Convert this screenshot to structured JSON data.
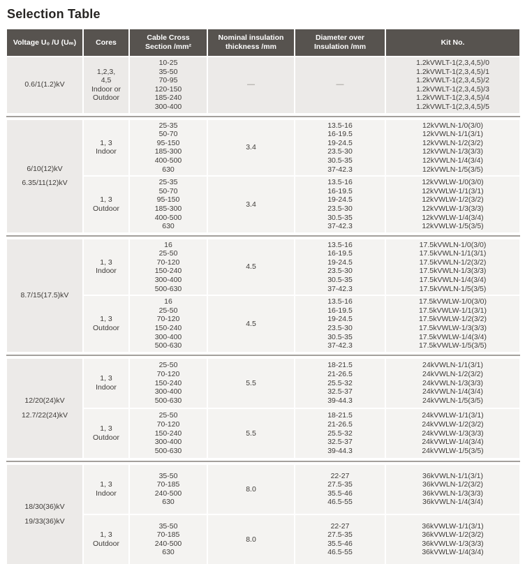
{
  "title": "Selection Table",
  "colors": {
    "header_bg": "#57534F",
    "header_text": "#FFFFFF",
    "cell_mid": "#ECEAE8",
    "cell_light": "#F4F3F1",
    "separator": "#A3A09C",
    "body_text": "#3E3B38",
    "dash_text": "#8F8C89",
    "title_text": "#262422"
  },
  "table": {
    "dash": "—",
    "columns": [
      {
        "id": "voltage",
        "lines": [
          "Voltage U₀ /U (Uₘ)"
        ]
      },
      {
        "id": "cores",
        "lines": [
          "Cores"
        ]
      },
      {
        "id": "cross-section",
        "lines": [
          "Cable Cross",
          "Section /mm²"
        ]
      },
      {
        "id": "thickness",
        "lines": [
          "Nominal insulation",
          "thickness /mm"
        ]
      },
      {
        "id": "diameter",
        "lines": [
          "Diameter over",
          "Insulation /mm"
        ]
      },
      {
        "id": "kit-no",
        "lines": [
          "Kit No."
        ]
      }
    ],
    "groups": [
      {
        "voltage": [
          "0.6/1(1.2)kV"
        ],
        "rows": [
          {
            "cores": [
              "1,2,3,",
              "4,5",
              "Indoor or",
              "Outdoor"
            ],
            "cross_sections": [
              "10-25",
              "35-50",
              "70-95",
              "120-150",
              "185-240",
              "300-400"
            ],
            "thickness": "—",
            "diameters": [
              "—"
            ],
            "kits": [
              "1.2kVWLT-1(2,3,4,5)/0",
              "1.2kVWLT-1(2,3,4,5)/1",
              "1.2kVWLT-1(2,3,4,5)/2",
              "1.2kVWLT-1(2,3,4,5)/3",
              "1.2kVWLT-1(2,3,4,5)/4",
              "1.2kVWLT-1(2,3,4,5)/5"
            ]
          }
        ]
      },
      {
        "voltage": [
          "6/10(12)kV",
          "6.35/11(12)kV"
        ],
        "rows": [
          {
            "cores": [
              "1, 3",
              "Indoor"
            ],
            "cross_sections": [
              "25-35",
              "50-70",
              "95-150",
              "185-300",
              "400-500",
              "630"
            ],
            "thickness": "3.4",
            "diameters": [
              "13.5-16",
              "16-19.5",
              "19-24.5",
              "23.5-30",
              "30.5-35",
              "37-42.3"
            ],
            "kits": [
              "12kVWLN-1/0(3/0)",
              "12kVWLN-1/1(3/1)",
              "12kVWLN-1/2(3/2)",
              "12kVWLN-1/3(3/3)",
              "12kVWLN-1/4(3/4)",
              "12kVWLN-1/5(3/5)"
            ]
          },
          {
            "cores": [
              "1, 3",
              "Outdoor"
            ],
            "cross_sections": [
              "25-35",
              "50-70",
              "95-150",
              "185-300",
              "400-500",
              "630"
            ],
            "thickness": "3.4",
            "diameters": [
              "13.5-16",
              "16-19.5",
              "19-24.5",
              "23.5-30",
              "30.5-35",
              "37-42.3"
            ],
            "kits": [
              "12kVWLW-1/0(3/0)",
              "12kVWLW-1/1(3/1)",
              "12kVWLW-1/2(3/2)",
              "12kVWLW-1/3(3/3)",
              "12kVWLW-1/4(3/4)",
              "12kVWLW-1/5(3/5)"
            ]
          }
        ]
      },
      {
        "voltage": [
          "8.7/15(17.5)kV"
        ],
        "rows": [
          {
            "cores": [
              "1, 3",
              "Indoor"
            ],
            "cross_sections": [
              "16",
              "25-50",
              "70-120",
              "150-240",
              "300-400",
              "500-630"
            ],
            "thickness": "4.5",
            "diameters": [
              "13.5-16",
              "16-19.5",
              "19-24.5",
              "23.5-30",
              "30.5-35",
              "37-42.3"
            ],
            "kits": [
              "17.5kVWLN-1/0(3/0)",
              "17.5kVWLN-1/1(3/1)",
              "17.5kVWLN-1/2(3/2)",
              "17.5kVWLN-1/3(3/3)",
              "17.5kVWLN-1/4(3/4)",
              "17.5kVWLN-1/5(3/5)"
            ]
          },
          {
            "cores": [
              "1, 3",
              "Outdoor"
            ],
            "cross_sections": [
              "16",
              "25-50",
              "70-120",
              "150-240",
              "300-400",
              "500-630"
            ],
            "thickness": "4.5",
            "diameters": [
              "13.5-16",
              "16-19.5",
              "19-24.5",
              "23.5-30",
              "30.5-35",
              "37-42.3"
            ],
            "kits": [
              "17.5kVWLW-1/0(3/0)",
              "17.5kVWLW-1/1(3/1)",
              "17.5kVWLW-1/2(3/2)",
              "17.5kVWLW-1/3(3/3)",
              "17.5kVWLW-1/4(3/4)",
              "17.5kVWLW-1/5(3/5)"
            ]
          }
        ]
      },
      {
        "voltage": [
          "12/20(24)kV",
          "12.7/22(24)kV"
        ],
        "rows": [
          {
            "cores": [
              "1, 3",
              "Indoor"
            ],
            "cross_sections": [
              "25-50",
              "70-120",
              "150-240",
              "300-400",
              "500-630"
            ],
            "thickness": "5.5",
            "diameters": [
              "18-21.5",
              "21-26.5",
              "25.5-32",
              "32.5-37",
              "39-44.3"
            ],
            "kits": [
              "24kVWLN-1/1(3/1)",
              "24kVWLN-1/2(3/2)",
              "24kVWLN-1/3(3/3)",
              "24kVWLN-1/4(3/4)",
              "24kVWLN-1/5(3/5)"
            ]
          },
          {
            "cores": [
              "1, 3",
              "Outdoor"
            ],
            "cross_sections": [
              "25-50",
              "70-120",
              "150-240",
              "300-400",
              "500-630"
            ],
            "thickness": "5.5",
            "diameters": [
              "18-21.5",
              "21-26.5",
              "25.5-32",
              "32.5-37",
              "39-44.3"
            ],
            "kits": [
              "24kVWLW-1/1(3/1)",
              "24kVWLW-1/2(3/2)",
              "24kVWLW-1/3(3/3)",
              "24kVWLW-1/4(3/4)",
              "24kVWLW-1/5(3/5)"
            ]
          }
        ]
      },
      {
        "voltage": [
          "18/30(36)kV",
          "19/33(36)kV"
        ],
        "rows": [
          {
            "cores": [
              "1, 3",
              "Indoor"
            ],
            "cross_sections": [
              "35-50",
              "70-185",
              "240-500",
              "630"
            ],
            "thickness": "8.0",
            "diameters": [
              "22-27",
              "27.5-35",
              "35.5-46",
              "46.5-55"
            ],
            "kits": [
              "36kVWLN-1/1(3/1)",
              "36kVWLN-1/2(3/2)",
              "36kVWLN-1/3(3/3)",
              "36kVWLN-1/4(3/4)"
            ]
          },
          {
            "cores": [
              "1, 3",
              "Outdoor"
            ],
            "cross_sections": [
              "35-50",
              "70-185",
              "240-500",
              "630"
            ],
            "thickness": "8.0",
            "diameters": [
              "22-27",
              "27.5-35",
              "35.5-46",
              "46.5-55"
            ],
            "kits": [
              "36kVWLW-1/1(3/1)",
              "36kVWLW-1/2(3/2)",
              "36kVWLW-1/3(3/3)",
              "36kVWLW-1/4(3/4)"
            ]
          }
        ]
      }
    ]
  }
}
